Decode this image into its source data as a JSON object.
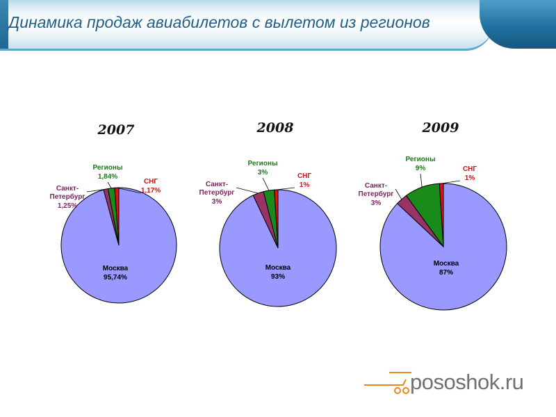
{
  "header": {
    "title": "Динамика продаж авиабилетов с вылетом из регионов"
  },
  "colors": {
    "moscow": "#9999ff",
    "spb": "#993366",
    "regions": "#1a8a1a",
    "cis": "#dd1111",
    "moscow_label": "#000000",
    "spb_label": "#7a1f5c",
    "regions_label": "#1a7a1a",
    "cis_label": "#cc1111"
  },
  "chart_data": [
    {
      "type": "pie",
      "title": "2007",
      "slices": [
        {
          "name": "Москва",
          "value": 95.74,
          "label": "95,74%"
        },
        {
          "name": "Санкт-Петербург",
          "value": 1.25,
          "label": "1,25%"
        },
        {
          "name": "Регионы",
          "value": 1.84,
          "label": "1,84%"
        },
        {
          "name": "СНГ",
          "value": 1.17,
          "label": "1,17%"
        }
      ]
    },
    {
      "type": "pie",
      "title": "2008",
      "slices": [
        {
          "name": "Москва",
          "value": 93,
          "label": "93%"
        },
        {
          "name": "Санкт-Петербург",
          "value": 3,
          "label": "3%"
        },
        {
          "name": "Регионы",
          "value": 3,
          "label": "3%"
        },
        {
          "name": "СНГ",
          "value": 1,
          "label": "1%"
        }
      ]
    },
    {
      "type": "pie",
      "title": "2009",
      "slices": [
        {
          "name": "Москва",
          "value": 87,
          "label": "87%"
        },
        {
          "name": "Санкт-Петербург",
          "value": 3,
          "label": "3%"
        },
        {
          "name": "Регионы",
          "value": 9,
          "label": "9%"
        },
        {
          "name": "СНГ",
          "value": 1,
          "label": "1%"
        }
      ]
    }
  ],
  "logo": {
    "text": "pososhok.ru"
  }
}
